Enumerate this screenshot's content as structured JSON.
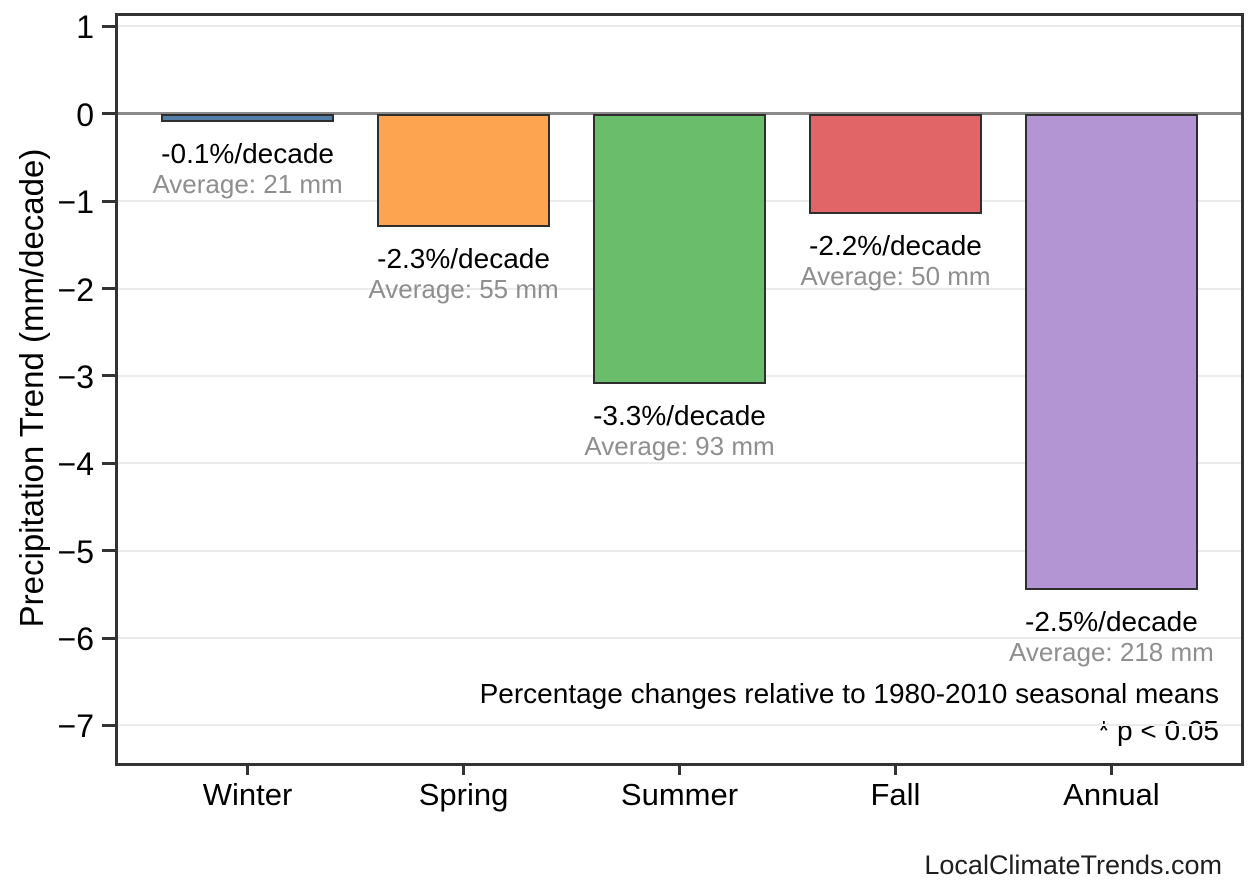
{
  "figure": {
    "watermark": "LocalClimateTrends.com"
  },
  "chart_data": {
    "type": "bar",
    "title": "",
    "xlabel": "",
    "ylabel": "Precipitation Trend (mm/decade)",
    "categories": [
      "Winter",
      "Spring",
      "Summer",
      "Fall",
      "Annual"
    ],
    "values_mm_per_decade": [
      -0.05,
      -1.25,
      -3.05,
      -1.1,
      -5.4
    ],
    "percent_per_decade": [
      -0.1,
      -2.3,
      -3.3,
      -2.2,
      -2.5
    ],
    "average_mm": [
      21,
      55,
      93,
      50,
      218
    ],
    "bar_labels": [
      {
        "pct": "-0.1%/decade",
        "avg": "Average: 21 mm"
      },
      {
        "pct": "-2.3%/decade",
        "avg": "Average: 55 mm"
      },
      {
        "pct": "-3.3%/decade",
        "avg": "Average: 93 mm"
      },
      {
        "pct": "-2.2%/decade",
        "avg": "Average: 50 mm"
      },
      {
        "pct": "-2.5%/decade",
        "avg": "Average: 218 mm"
      }
    ],
    "bar_colors": [
      "#527EA8",
      "#FDA451",
      "#69BD6B",
      "#E16467",
      "#B395D3"
    ],
    "bar_border_color": "#2E2E2E",
    "ylim": [
      -7.43,
      1.12
    ],
    "yticks": [
      1,
      0,
      -1,
      -2,
      -3,
      -4,
      -5,
      -6,
      -7
    ],
    "ytick_labels": [
      "1",
      "0",
      "−1",
      "−2",
      "−3",
      "−4",
      "−5",
      "−6",
      "−7"
    ],
    "grid": "horizontal major gridlines, light gray, white background, dark full border",
    "gridline_color": "#EBEBEB",
    "zero_line_color": "#8A8A8A",
    "legend": null,
    "annotations": [
      "Percentage changes relative to 1980-2010 seasonal means",
      "* p < 0.05"
    ]
  }
}
